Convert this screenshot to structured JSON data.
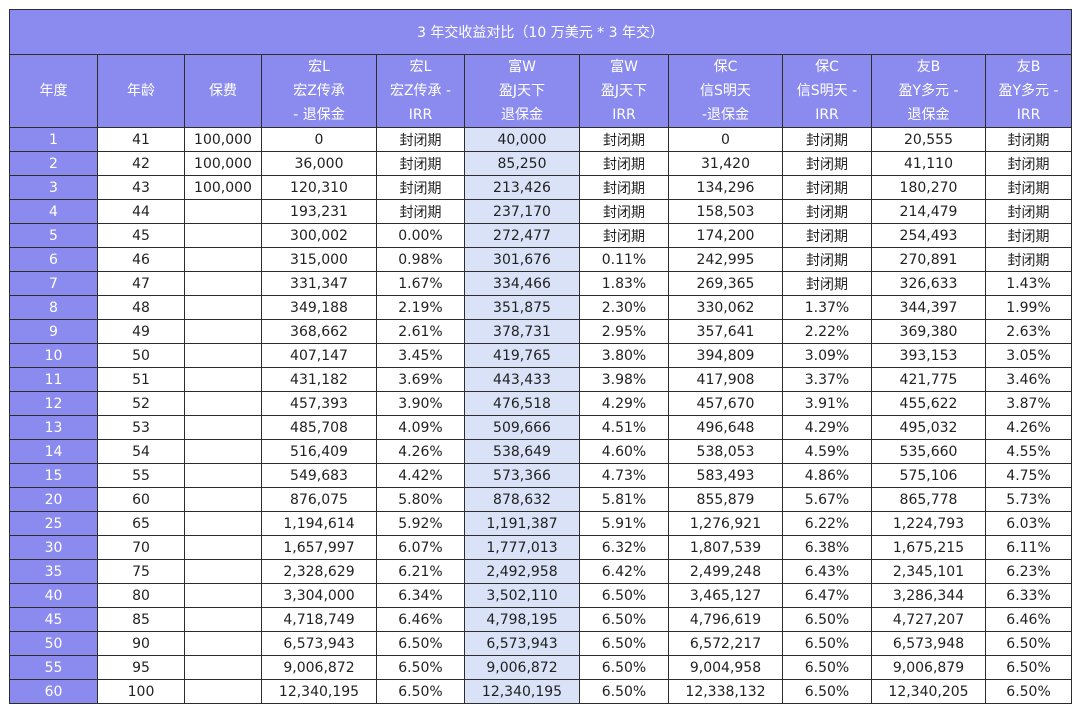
{
  "title": "3 年交收益对比（10 万美元 * 3 年交）",
  "headers": [
    [
      "年度"
    ],
    [
      "年龄"
    ],
    [
      "保费"
    ],
    [
      "宏L",
      "宏Z传承",
      "- 退保金"
    ],
    [
      "宏L",
      "宏Z传承 -",
      "IRR"
    ],
    [
      "富W",
      "盈J天下",
      "退保金"
    ],
    [
      "富W",
      "盈J天下",
      "IRR"
    ],
    [
      "保C",
      "信S明天",
      "-退保金"
    ],
    [
      "保C",
      "信S明天 -",
      "IRR"
    ],
    [
      "友B",
      "盈Y多元 -",
      "退保金"
    ],
    [
      "友B",
      "盈Y多元 -",
      "IRR"
    ]
  ],
  "rows": [
    [
      "1",
      "41",
      "100,000",
      "0",
      "封闭期",
      "40,000",
      "封闭期",
      "0",
      "封闭期",
      "20,555",
      "封闭期"
    ],
    [
      "2",
      "42",
      "100,000",
      "36,000",
      "封闭期",
      "85,250",
      "封闭期",
      "31,420",
      "封闭期",
      "41,110",
      "封闭期"
    ],
    [
      "3",
      "43",
      "100,000",
      "120,310",
      "封闭期",
      "213,426",
      "封闭期",
      "134,296",
      "封闭期",
      "180,270",
      "封闭期"
    ],
    [
      "4",
      "44",
      "",
      "193,231",
      "封闭期",
      "237,170",
      "封闭期",
      "158,503",
      "封闭期",
      "214,479",
      "封闭期"
    ],
    [
      "5",
      "45",
      "",
      "300,002",
      "0.00%",
      "272,477",
      "封闭期",
      "174,200",
      "封闭期",
      "254,493",
      "封闭期"
    ],
    [
      "6",
      "46",
      "",
      "315,000",
      "0.98%",
      "301,676",
      "0.11%",
      "242,995",
      "封闭期",
      "270,891",
      "封闭期"
    ],
    [
      "7",
      "47",
      "",
      "331,347",
      "1.67%",
      "334,466",
      "1.83%",
      "269,365",
      "封闭期",
      "326,633",
      "1.43%"
    ],
    [
      "8",
      "48",
      "",
      "349,188",
      "2.19%",
      "351,875",
      "2.30%",
      "330,062",
      "1.37%",
      "344,397",
      "1.99%"
    ],
    [
      "9",
      "49",
      "",
      "368,662",
      "2.61%",
      "378,731",
      "2.95%",
      "357,641",
      "2.22%",
      "369,380",
      "2.63%"
    ],
    [
      "10",
      "50",
      "",
      "407,147",
      "3.45%",
      "419,765",
      "3.80%",
      "394,809",
      "3.09%",
      "393,153",
      "3.05%"
    ],
    [
      "11",
      "51",
      "",
      "431,182",
      "3.69%",
      "443,433",
      "3.98%",
      "417,908",
      "3.37%",
      "421,775",
      "3.46%"
    ],
    [
      "12",
      "52",
      "",
      "457,393",
      "3.90%",
      "476,518",
      "4.29%",
      "457,670",
      "3.91%",
      "455,622",
      "3.87%"
    ],
    [
      "13",
      "53",
      "",
      "485,708",
      "4.09%",
      "509,666",
      "4.51%",
      "496,648",
      "4.29%",
      "495,032",
      "4.26%"
    ],
    [
      "14",
      "54",
      "",
      "516,409",
      "4.26%",
      "538,649",
      "4.60%",
      "538,053",
      "4.59%",
      "535,660",
      "4.55%"
    ],
    [
      "15",
      "55",
      "",
      "549,683",
      "4.42%",
      "573,366",
      "4.73%",
      "583,493",
      "4.86%",
      "575,106",
      "4.75%"
    ],
    [
      "20",
      "60",
      "",
      "876,075",
      "5.80%",
      "878,632",
      "5.81%",
      "855,879",
      "5.67%",
      "865,778",
      "5.73%"
    ],
    [
      "25",
      "65",
      "",
      "1,194,614",
      "5.92%",
      "1,191,387",
      "5.91%",
      "1,276,921",
      "6.22%",
      "1,224,793",
      "6.03%"
    ],
    [
      "30",
      "70",
      "",
      "1,657,997",
      "6.07%",
      "1,777,013",
      "6.32%",
      "1,807,539",
      "6.38%",
      "1,675,215",
      "6.11%"
    ],
    [
      "35",
      "75",
      "",
      "2,328,629",
      "6.21%",
      "2,492,958",
      "6.42%",
      "2,499,248",
      "6.43%",
      "2,345,101",
      "6.23%"
    ],
    [
      "40",
      "80",
      "",
      "3,304,000",
      "6.34%",
      "3,502,110",
      "6.50%",
      "3,465,127",
      "6.47%",
      "3,286,344",
      "6.33%"
    ],
    [
      "45",
      "85",
      "",
      "4,718,749",
      "6.46%",
      "4,798,195",
      "6.50%",
      "4,796,619",
      "6.50%",
      "4,727,207",
      "6.46%"
    ],
    [
      "50",
      "90",
      "",
      "6,573,943",
      "6.50%",
      "6,573,943",
      "6.50%",
      "6,572,217",
      "6.50%",
      "6,573,948",
      "6.50%"
    ],
    [
      "55",
      "95",
      "",
      "9,006,872",
      "6.50%",
      "9,006,872",
      "6.50%",
      "9,004,958",
      "6.50%",
      "9,006,879",
      "6.50%"
    ],
    [
      "60",
      "100",
      "",
      "12,340,195",
      "6.50%",
      "12,340,195",
      "6.50%",
      "12,338,132",
      "6.50%",
      "12,340,205",
      "6.50%"
    ]
  ],
  "colors": {
    "header_bg": "#8b8bef",
    "header_text": "#ffffff",
    "highlight_column_bg": "#d9e2f6",
    "border": "#2d2d2d"
  }
}
